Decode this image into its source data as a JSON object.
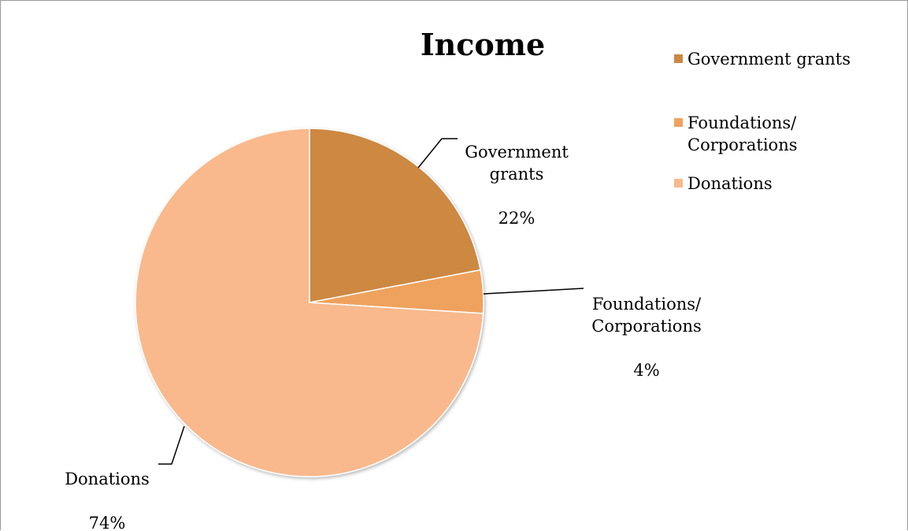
{
  "chart_data": {
    "type": "pie",
    "title": "Income",
    "legend_position": "top-right",
    "slices": [
      {
        "name": "Government grants",
        "label": "Government\ngrants",
        "value": 22,
        "percent_label": "22%",
        "color": "#CD8842"
      },
      {
        "name": "Foundations/ Corporations",
        "label": "Foundations/\nCorporations",
        "value": 4,
        "percent_label": "4%",
        "color": "#EFA25D"
      },
      {
        "name": "Donations",
        "label": "Donations",
        "value": 74,
        "percent_label": "74%",
        "color": "#F9B98C"
      }
    ],
    "legend": [
      {
        "label": "Government grants",
        "color": "#CD8842"
      },
      {
        "label": "Foundations/\nCorporations",
        "color": "#EFA25D"
      },
      {
        "label": "Donations",
        "color": "#F9B98C"
      }
    ]
  }
}
